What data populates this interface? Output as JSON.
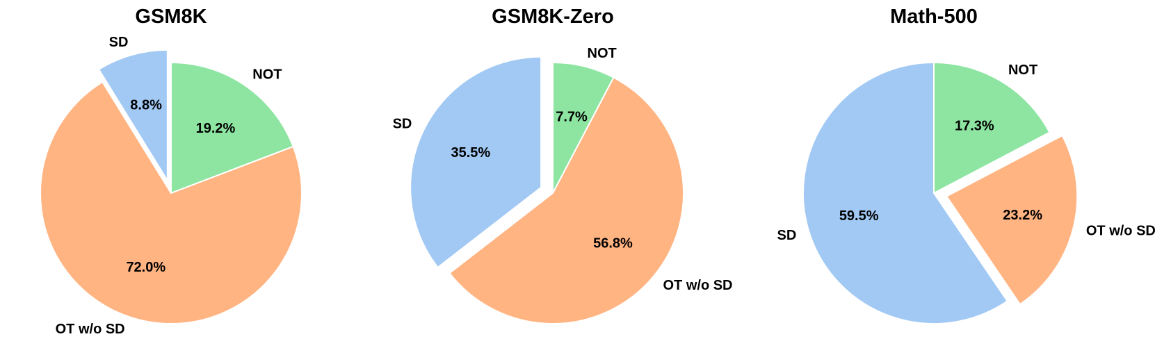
{
  "chart_data": [
    {
      "type": "pie",
      "title": "GSM8K",
      "start_angle_deg": 90,
      "direction": "clockwise",
      "exploded": "SD",
      "slices": [
        {
          "label": "NOT",
          "value": 19.2,
          "display": "19.2%",
          "color": "#8de5a1"
        },
        {
          "label": "OT w/o SD",
          "value": 72.0,
          "display": "72.0%",
          "color": "#ffb482"
        },
        {
          "label": "SD",
          "value": 8.8,
          "display": "8.8%",
          "color": "#a1c9f4"
        }
      ]
    },
    {
      "type": "pie",
      "title": "GSM8K-Zero",
      "start_angle_deg": 90,
      "direction": "clockwise",
      "exploded": "SD",
      "slices": [
        {
          "label": "NOT",
          "value": 7.7,
          "display": "7.7%",
          "color": "#8de5a1"
        },
        {
          "label": "OT w/o SD",
          "value": 56.8,
          "display": "56.8%",
          "color": "#ffb482"
        },
        {
          "label": "SD",
          "value": 35.5,
          "display": "35.5%",
          "color": "#a1c9f4"
        }
      ]
    },
    {
      "type": "pie",
      "title": "Math-500",
      "start_angle_deg": 90,
      "direction": "clockwise",
      "exploded": "OT w/o SD",
      "slices": [
        {
          "label": "NOT",
          "value": 17.3,
          "display": "17.3%",
          "color": "#8de5a1"
        },
        {
          "label": "OT w/o SD",
          "value": 23.2,
          "display": "23.2%",
          "color": "#ffb482"
        },
        {
          "label": "SD",
          "value": 59.5,
          "display": "59.5%",
          "color": "#a1c9f4"
        }
      ]
    }
  ]
}
